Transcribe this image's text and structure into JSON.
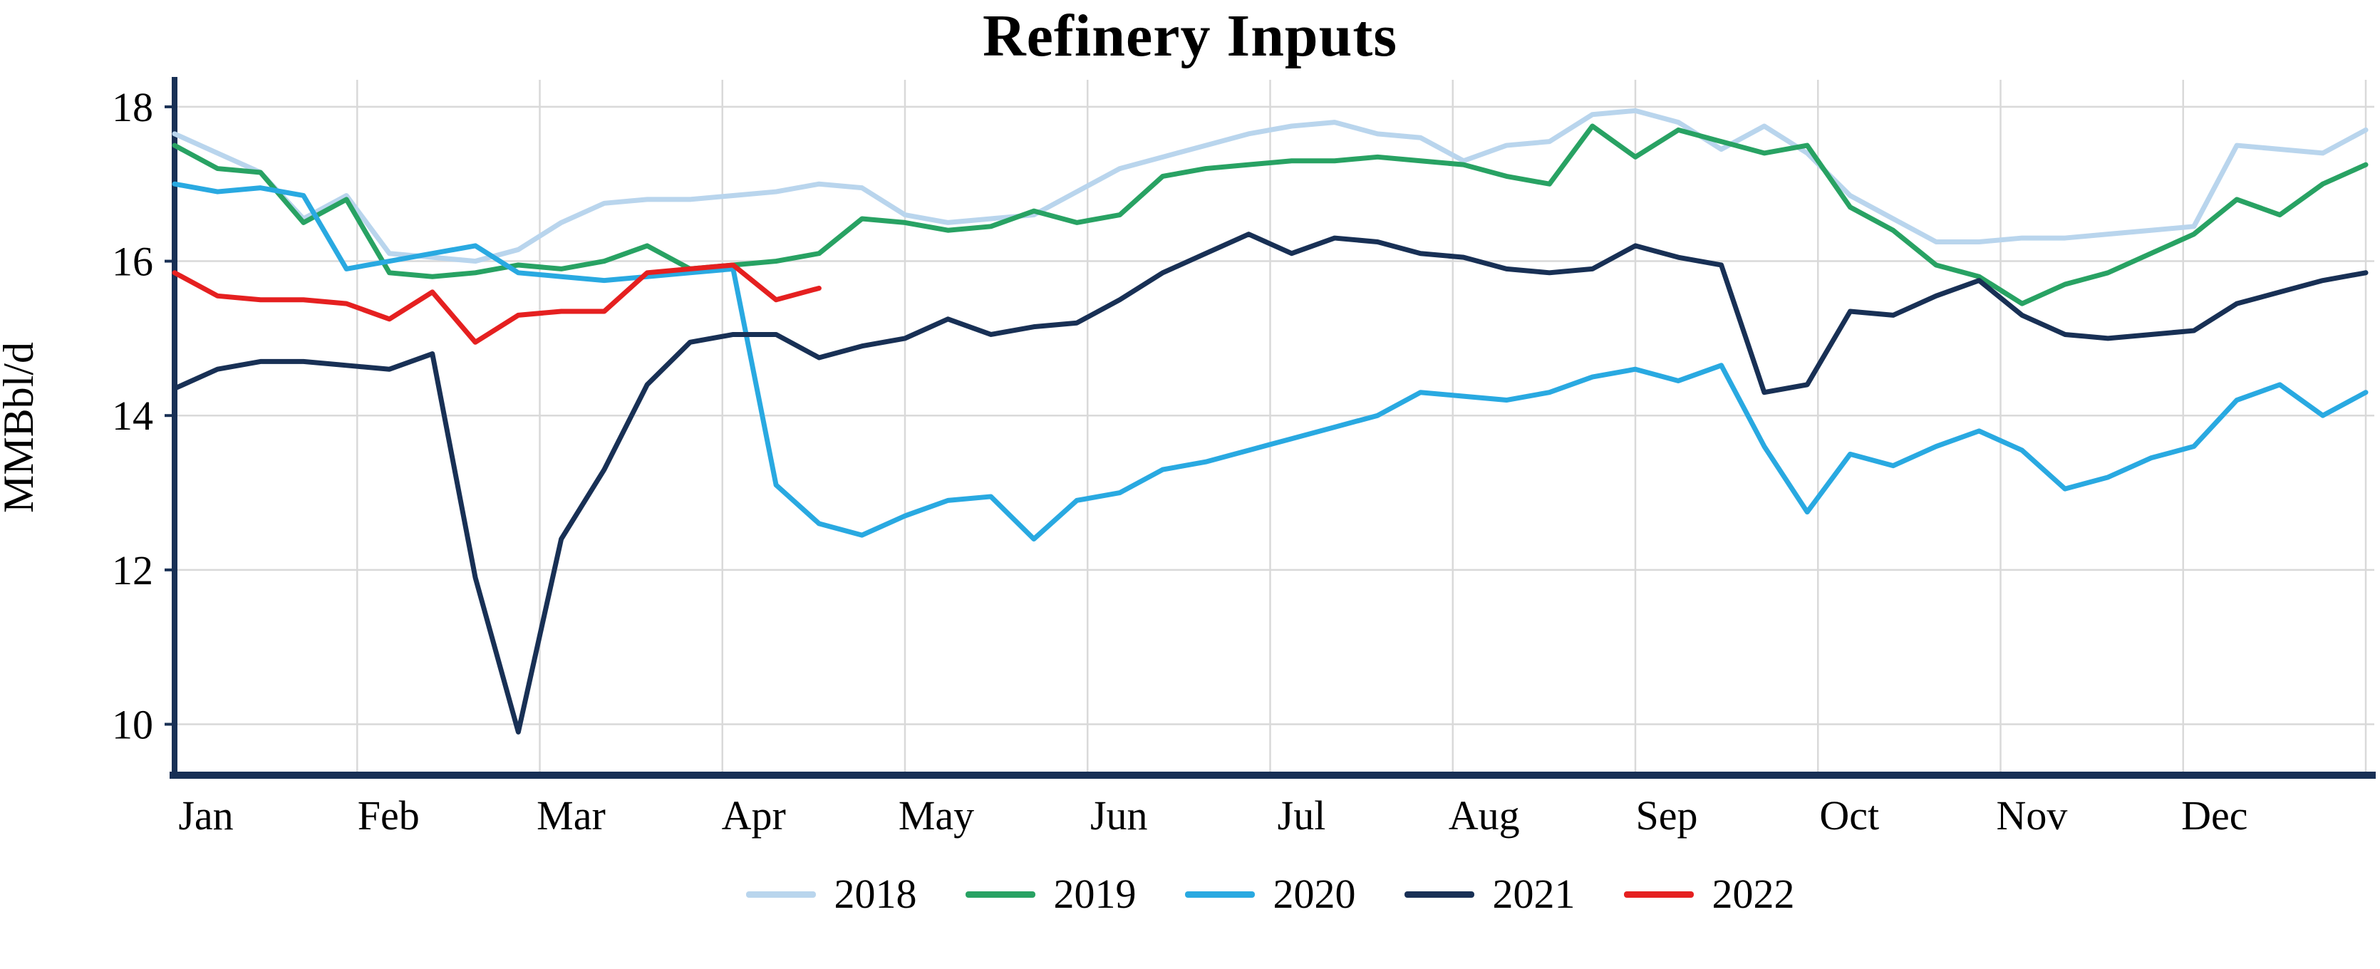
{
  "title": "Refinery Inputs",
  "ylabel": "MMBbl/d",
  "colors": {
    "axis": "#183055",
    "grid": "#d9d9d9",
    "text": "#000000",
    "background": "#ffffff"
  },
  "chart_data": {
    "type": "line",
    "title": "Refinery Inputs",
    "xlabel": "",
    "ylabel": "MMBbl/d",
    "x_unit": "weekly, Jan through Dec",
    "ylim": [
      9.34,
      18.35
    ],
    "y_ticks": [
      10,
      12,
      14,
      16,
      18
    ],
    "months": [
      "Jan",
      "Feb",
      "Mar",
      "Apr",
      "May",
      "Jun",
      "Jul",
      "Aug",
      "Sep",
      "Oct",
      "Nov",
      "Dec"
    ],
    "grid": true,
    "legend_position": "bottom",
    "series": [
      {
        "name": "2018",
        "color": "#b9d5ed",
        "values": [
          17.65,
          17.4,
          17.15,
          16.55,
          16.85,
          16.1,
          16.05,
          16.0,
          16.15,
          16.5,
          16.75,
          16.8,
          16.8,
          16.85,
          16.9,
          17.0,
          16.95,
          16.6,
          16.5,
          16.55,
          16.6,
          16.9,
          17.2,
          17.35,
          17.5,
          17.65,
          17.75,
          17.8,
          17.65,
          17.6,
          17.3,
          17.5,
          17.55,
          17.9,
          17.95,
          17.8,
          17.45,
          17.75,
          17.4,
          16.85,
          16.55,
          16.25,
          16.25,
          16.3,
          16.3,
          16.35,
          16.4,
          16.45,
          17.5,
          17.45,
          17.4,
          17.7
        ]
      },
      {
        "name": "2019",
        "color": "#28a263",
        "values": [
          17.5,
          17.2,
          17.15,
          16.5,
          16.8,
          15.85,
          15.8,
          15.85,
          15.95,
          15.9,
          16.0,
          16.2,
          15.9,
          15.95,
          16.0,
          16.1,
          16.55,
          16.5,
          16.4,
          16.45,
          16.65,
          16.5,
          16.6,
          17.1,
          17.2,
          17.25,
          17.3,
          17.3,
          17.35,
          17.3,
          17.25,
          17.1,
          17.0,
          17.75,
          17.35,
          17.7,
          17.55,
          17.4,
          17.5,
          16.7,
          16.4,
          15.95,
          15.8,
          15.45,
          15.7,
          15.85,
          16.1,
          16.35,
          16.8,
          16.6,
          17.0,
          17.25
        ]
      },
      {
        "name": "2020",
        "color": "#29a9e1",
        "values": [
          17.0,
          16.9,
          16.95,
          16.85,
          15.9,
          16.0,
          16.1,
          16.2,
          15.85,
          15.8,
          15.75,
          15.8,
          15.85,
          15.9,
          13.1,
          12.6,
          12.45,
          12.7,
          12.9,
          12.95,
          12.4,
          12.9,
          13.0,
          13.3,
          13.4,
          13.55,
          13.7,
          13.85,
          14.0,
          14.3,
          14.25,
          14.2,
          14.3,
          14.5,
          14.6,
          14.45,
          14.65,
          13.6,
          12.75,
          13.5,
          13.35,
          13.6,
          13.8,
          13.55,
          13.05,
          13.2,
          13.45,
          13.6,
          14.2,
          14.4,
          14.0,
          14.3
        ]
      },
      {
        "name": "2021",
        "color": "#183055",
        "values": [
          14.35,
          14.6,
          14.7,
          14.7,
          14.65,
          14.6,
          14.8,
          11.9,
          9.9,
          12.4,
          13.3,
          14.4,
          14.95,
          15.05,
          15.05,
          14.75,
          14.9,
          15.0,
          15.25,
          15.05,
          15.15,
          15.2,
          15.5,
          15.85,
          16.1,
          16.35,
          16.1,
          16.3,
          16.25,
          16.1,
          16.05,
          15.9,
          15.85,
          15.9,
          16.2,
          16.05,
          15.95,
          14.3,
          14.4,
          15.35,
          15.3,
          15.55,
          15.75,
          15.3,
          15.05,
          15.0,
          15.05,
          15.1,
          15.45,
          15.6,
          15.75,
          15.85
        ]
      },
      {
        "name": "2022",
        "color": "#e52020",
        "values": [
          15.85,
          15.55,
          15.5,
          15.5,
          15.45,
          15.25,
          15.6,
          14.95,
          15.3,
          15.35,
          15.35,
          15.85,
          15.9,
          15.95,
          15.5,
          15.65
        ]
      }
    ]
  }
}
